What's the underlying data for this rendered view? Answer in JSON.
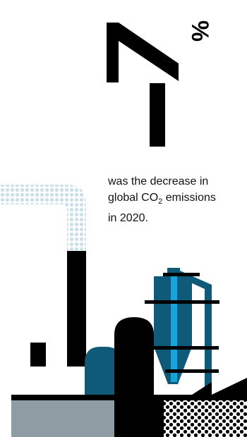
{
  "statistic": {
    "value": "7",
    "unit": "%"
  },
  "caption": {
    "line1": "was the decrease in",
    "line2_prefix": "global CO",
    "line2_sub": "2",
    "line2_suffix": " emissions",
    "line3": "in 2020."
  },
  "colors": {
    "ink": "#000000",
    "petrol": "#0f5a78",
    "sky": "#1aa2dd",
    "grey": "#8e9ca4",
    "smoke": "#c9dfe9"
  }
}
